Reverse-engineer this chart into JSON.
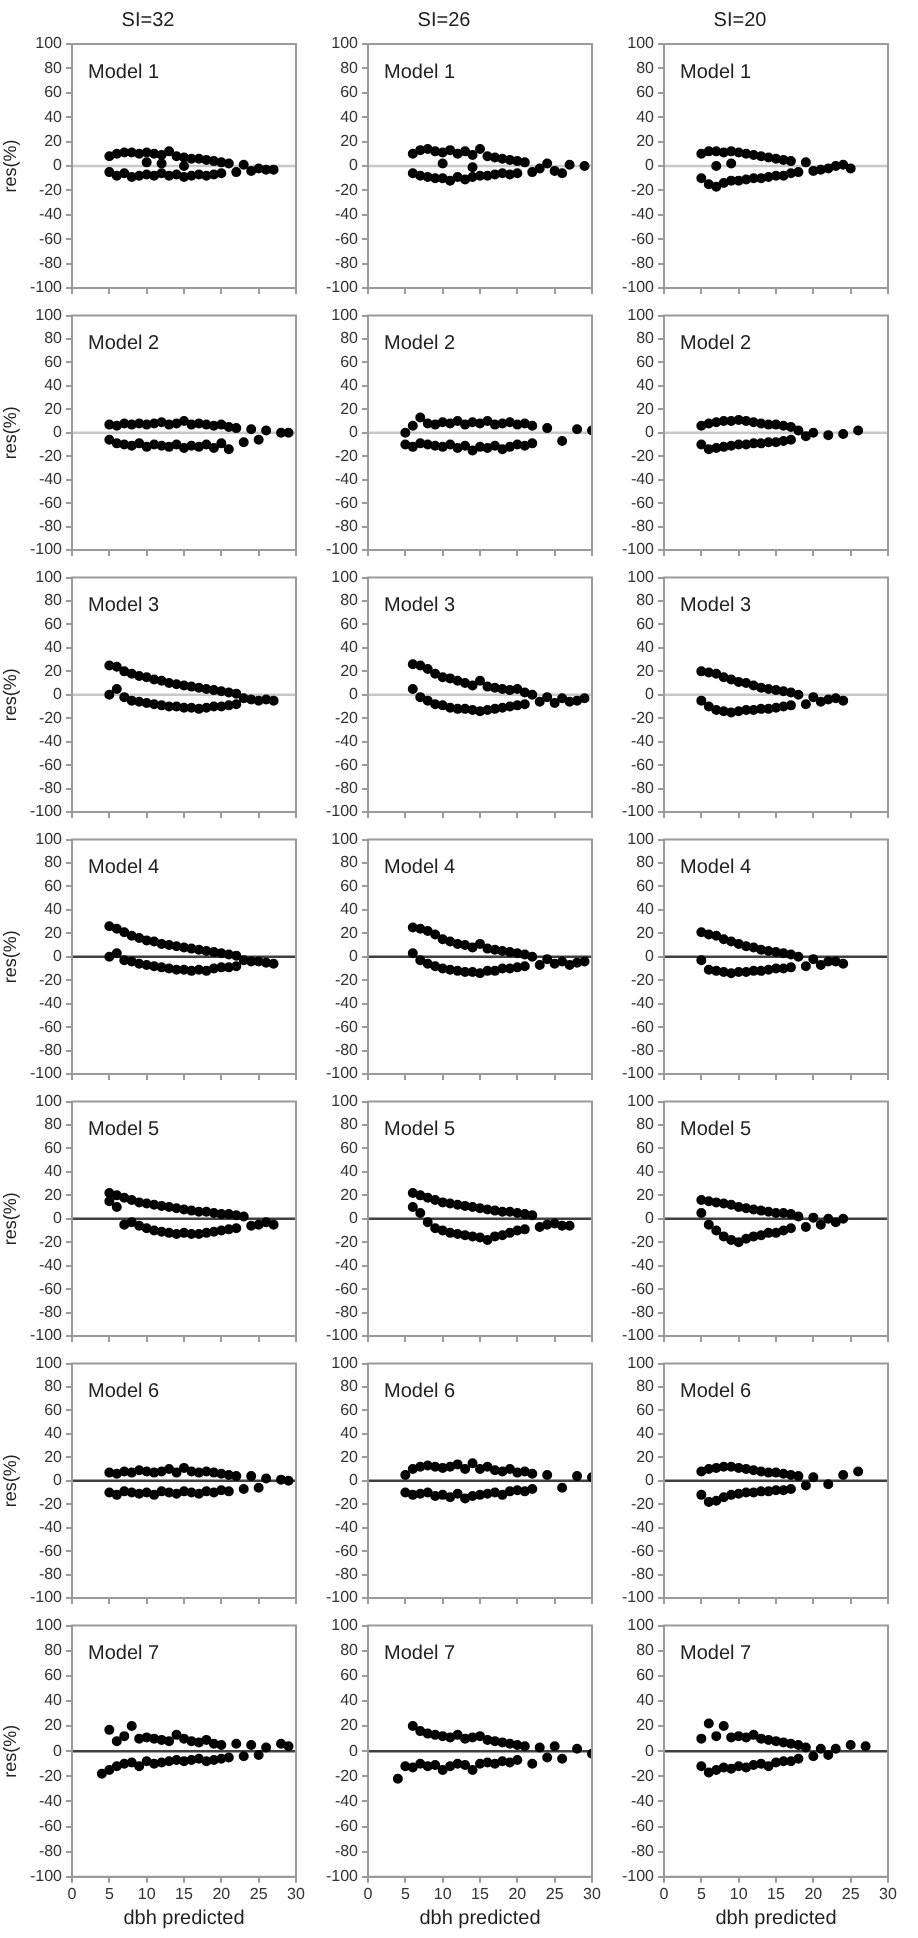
{
  "chart_data": [
    {
      "type": "scatter",
      "title": "SI=32",
      "ylabel": "res(%)",
      "annotations": [
        "Model 1"
      ],
      "x": [
        5,
        5,
        6,
        6,
        7,
        7,
        8,
        8,
        9,
        9,
        10,
        10,
        11,
        11,
        12,
        12,
        13,
        13,
        14,
        14,
        15,
        15,
        16,
        16,
        17,
        17,
        18,
        18,
        19,
        19,
        20,
        20,
        21,
        22,
        23,
        24,
        25,
        26,
        27,
        12,
        15,
        10
      ],
      "values": [
        8,
        -5,
        10,
        -8,
        11,
        -6,
        11,
        -9,
        10,
        -8,
        11,
        -7,
        10,
        -8,
        9,
        -6,
        12,
        -8,
        8,
        -7,
        7,
        -9,
        6,
        -8,
        6,
        -7,
        5,
        -8,
        4,
        -7,
        3,
        -6,
        2,
        -5,
        1,
        -4,
        -2,
        -3,
        -3,
        2,
        0,
        3
      ],
      "color": "#000000",
      "marker": "circle",
      "xlim": [
        0,
        30
      ],
      "xticks": [
        0,
        5,
        10,
        15,
        20,
        25,
        30
      ],
      "ylim": [
        -100,
        100
      ],
      "yticks": [
        -100,
        -80,
        -60,
        -40,
        -20,
        0,
        20,
        40,
        60,
        80,
        100
      ],
      "tick_labels": "y",
      "ref_lines": [
        {
          "axis": "y",
          "value": 0,
          "color": "#c8c8c8"
        }
      ]
    },
    {
      "type": "scatter",
      "title": "SI=26",
      "annotations": [
        "Model 1"
      ],
      "x": [
        6,
        6,
        7,
        7,
        8,
        8,
        9,
        9,
        10,
        10,
        11,
        11,
        12,
        12,
        13,
        13,
        14,
        14,
        15,
        15,
        16,
        16,
        17,
        17,
        18,
        18,
        19,
        19,
        20,
        20,
        21,
        22,
        23,
        24,
        25,
        26,
        27,
        29,
        10,
        14
      ],
      "values": [
        10,
        -6,
        13,
        -8,
        14,
        -9,
        12,
        -10,
        11,
        -10,
        13,
        -12,
        10,
        -9,
        12,
        -11,
        9,
        -9,
        14,
        -8,
        8,
        -8,
        7,
        -7,
        6,
        -6,
        5,
        -7,
        4,
        -6,
        3,
        -5,
        -2,
        2,
        -4,
        -6,
        1,
        0,
        2,
        -1
      ],
      "color": "#000000",
      "marker": "circle",
      "xlim": [
        0,
        30
      ],
      "xticks": [
        0,
        5,
        10,
        15,
        20,
        25,
        30
      ],
      "ylim": [
        -100,
        100
      ],
      "yticks": [
        -100,
        -80,
        -60,
        -40,
        -20,
        0,
        20,
        40,
        60,
        80,
        100
      ],
      "tick_labels": "y",
      "ref_lines": [
        {
          "axis": "y",
          "value": 0,
          "color": "#c8c8c8"
        }
      ]
    },
    {
      "type": "scatter",
      "title": "SI=20",
      "annotations": [
        "Model 1"
      ],
      "x": [
        5,
        5,
        6,
        6,
        7,
        7,
        8,
        8,
        9,
        9,
        10,
        10,
        11,
        11,
        12,
        12,
        13,
        13,
        14,
        14,
        15,
        15,
        16,
        16,
        17,
        17,
        18,
        19,
        20,
        21,
        22,
        23,
        24,
        25,
        7,
        9
      ],
      "values": [
        10,
        -10,
        12,
        -15,
        12,
        -17,
        11,
        -14,
        12,
        -12,
        11,
        -12,
        10,
        -11,
        9,
        -10,
        8,
        -10,
        7,
        -9,
        6,
        -8,
        5,
        -8,
        4,
        -6,
        -5,
        3,
        -4,
        -3,
        -2,
        0,
        1,
        -2,
        0,
        2
      ],
      "color": "#000000",
      "marker": "circle",
      "xlim": [
        0,
        30
      ],
      "xticks": [
        0,
        5,
        10,
        15,
        20,
        25,
        30
      ],
      "ylim": [
        -100,
        100
      ],
      "yticks": [
        -100,
        -80,
        -60,
        -40,
        -20,
        0,
        20,
        40,
        60,
        80,
        100
      ],
      "tick_labels": "y",
      "ref_lines": [
        {
          "axis": "y",
          "value": 0,
          "color": "#c8c8c8"
        }
      ]
    },
    {
      "type": "scatter",
      "ylabel": "res(%)",
      "annotations": [
        "Model 2"
      ],
      "x": [
        5,
        5,
        6,
        6,
        7,
        7,
        8,
        8,
        9,
        9,
        10,
        10,
        11,
        11,
        12,
        12,
        13,
        13,
        14,
        14,
        15,
        15,
        16,
        16,
        17,
        17,
        18,
        18,
        19,
        19,
        20,
        20,
        21,
        21,
        22,
        23,
        24,
        25,
        26,
        28,
        29
      ],
      "values": [
        7,
        -6,
        6,
        -9,
        8,
        -10,
        7,
        -11,
        8,
        -9,
        7,
        -12,
        8,
        -10,
        9,
        -11,
        7,
        -12,
        8,
        -10,
        10,
        -13,
        7,
        -11,
        8,
        -12,
        7,
        -10,
        6,
        -13,
        7,
        -9,
        5,
        -14,
        4,
        -8,
        3,
        -6,
        2,
        0,
        0
      ],
      "color": "#000000",
      "marker": "circle",
      "xlim": [
        0,
        30
      ],
      "xticks": [
        0,
        5,
        10,
        15,
        20,
        25,
        30
      ],
      "ylim": [
        -100,
        100
      ],
      "yticks": [
        -100,
        -80,
        -60,
        -40,
        -20,
        0,
        20,
        40,
        60,
        80,
        100
      ],
      "tick_labels": "y",
      "ref_lines": [
        {
          "axis": "y",
          "value": 0,
          "color": "#c8c8c8"
        }
      ]
    },
    {
      "type": "scatter",
      "annotations": [
        "Model 2"
      ],
      "x": [
        5,
        5,
        6,
        6,
        7,
        7,
        8,
        8,
        9,
        9,
        10,
        10,
        11,
        11,
        12,
        12,
        13,
        13,
        14,
        14,
        15,
        15,
        16,
        16,
        17,
        17,
        18,
        18,
        19,
        19,
        20,
        20,
        21,
        21,
        22,
        22,
        24,
        26,
        28,
        30
      ],
      "values": [
        0,
        -10,
        6,
        -12,
        13,
        -9,
        8,
        -10,
        7,
        -11,
        9,
        -12,
        8,
        -10,
        10,
        -13,
        7,
        -11,
        9,
        -15,
        8,
        -12,
        10,
        -13,
        7,
        -11,
        8,
        -14,
        9,
        -12,
        7,
        -10,
        8,
        -11,
        6,
        -9,
        4,
        -7,
        3,
        2
      ],
      "color": "#000000",
      "marker": "circle",
      "xlim": [
        0,
        30
      ],
      "xticks": [
        0,
        5,
        10,
        15,
        20,
        25,
        30
      ],
      "ylim": [
        -100,
        100
      ],
      "yticks": [
        -100,
        -80,
        -60,
        -40,
        -20,
        0,
        20,
        40,
        60,
        80,
        100
      ],
      "tick_labels": "y",
      "ref_lines": [
        {
          "axis": "y",
          "value": 0,
          "color": "#c8c8c8"
        }
      ]
    },
    {
      "type": "scatter",
      "annotations": [
        "Model 2"
      ],
      "x": [
        5,
        5,
        6,
        6,
        7,
        7,
        8,
        8,
        9,
        9,
        10,
        10,
        11,
        11,
        12,
        12,
        13,
        13,
        14,
        14,
        15,
        15,
        16,
        16,
        17,
        17,
        18,
        19,
        20,
        22,
        24,
        26
      ],
      "values": [
        6,
        -10,
        8,
        -14,
        9,
        -13,
        10,
        -12,
        10,
        -11,
        11,
        -10,
        10,
        -10,
        9,
        -9,
        8,
        -9,
        7,
        -8,
        7,
        -8,
        6,
        -7,
        5,
        -6,
        2,
        -3,
        0,
        -2,
        -1,
        2
      ],
      "color": "#000000",
      "marker": "circle",
      "xlim": [
        0,
        30
      ],
      "xticks": [
        0,
        5,
        10,
        15,
        20,
        25,
        30
      ],
      "ylim": [
        -100,
        100
      ],
      "yticks": [
        -100,
        -80,
        -60,
        -40,
        -20,
        0,
        20,
        40,
        60,
        80,
        100
      ],
      "tick_labels": "y",
      "ref_lines": [
        {
          "axis": "y",
          "value": 0,
          "color": "#c8c8c8"
        }
      ]
    },
    {
      "type": "scatter",
      "ylabel": "res(%)",
      "annotations": [
        "Model 3"
      ],
      "x": [
        5,
        5,
        6,
        6,
        7,
        7,
        8,
        8,
        9,
        9,
        10,
        10,
        11,
        11,
        12,
        12,
        13,
        13,
        14,
        14,
        15,
        15,
        16,
        16,
        17,
        17,
        18,
        18,
        19,
        19,
        20,
        20,
        21,
        21,
        22,
        22,
        23,
        24,
        25,
        26,
        27
      ],
      "values": [
        25,
        0,
        24,
        5,
        20,
        -2,
        18,
        -5,
        16,
        -6,
        15,
        -7,
        13,
        -8,
        12,
        -9,
        10,
        -10,
        9,
        -10,
        8,
        -11,
        7,
        -11,
        6,
        -12,
        5,
        -11,
        4,
        -10,
        3,
        -10,
        2,
        -9,
        1,
        -8,
        -3,
        -4,
        -5,
        -4,
        -5
      ],
      "color": "#000000",
      "marker": "circle",
      "xlim": [
        0,
        30
      ],
      "xticks": [
        0,
        5,
        10,
        15,
        20,
        25,
        30
      ],
      "ylim": [
        -100,
        100
      ],
      "yticks": [
        -100,
        -80,
        -60,
        -40,
        -20,
        0,
        20,
        40,
        60,
        80,
        100
      ],
      "tick_labels": "y",
      "ref_lines": [
        {
          "axis": "y",
          "value": 0,
          "color": "#c8c8c8"
        }
      ]
    },
    {
      "type": "scatter",
      "annotations": [
        "Model 3"
      ],
      "x": [
        6,
        6,
        7,
        7,
        8,
        8,
        9,
        9,
        10,
        10,
        11,
        11,
        12,
        12,
        13,
        13,
        14,
        14,
        15,
        15,
        16,
        16,
        17,
        17,
        18,
        18,
        19,
        19,
        20,
        20,
        21,
        21,
        22,
        23,
        24,
        25,
        26,
        27,
        28,
        29
      ],
      "values": [
        26,
        5,
        25,
        -2,
        22,
        -5,
        18,
        -8,
        15,
        -9,
        14,
        -11,
        12,
        -12,
        10,
        -12,
        8,
        -13,
        12,
        -14,
        7,
        -13,
        6,
        -12,
        5,
        -11,
        4,
        -10,
        5,
        -9,
        2,
        -8,
        0,
        -6,
        -2,
        -7,
        -3,
        -6,
        -5,
        -3
      ],
      "color": "#000000",
      "marker": "circle",
      "xlim": [
        0,
        30
      ],
      "xticks": [
        0,
        5,
        10,
        15,
        20,
        25,
        30
      ],
      "ylim": [
        -100,
        100
      ],
      "yticks": [
        -100,
        -80,
        -60,
        -40,
        -20,
        0,
        20,
        40,
        60,
        80,
        100
      ],
      "tick_labels": "y",
      "ref_lines": [
        {
          "axis": "y",
          "value": 0,
          "color": "#c8c8c8"
        }
      ]
    },
    {
      "type": "scatter",
      "annotations": [
        "Model 3"
      ],
      "x": [
        5,
        5,
        6,
        6,
        7,
        7,
        8,
        8,
        9,
        9,
        10,
        10,
        11,
        11,
        12,
        12,
        13,
        13,
        14,
        14,
        15,
        15,
        16,
        16,
        17,
        17,
        18,
        19,
        20,
        21,
        22,
        23,
        24
      ],
      "values": [
        20,
        -5,
        19,
        -10,
        18,
        -13,
        15,
        -14,
        13,
        -15,
        11,
        -14,
        10,
        -13,
        8,
        -13,
        6,
        -12,
        5,
        -12,
        4,
        -11,
        3,
        -10,
        2,
        -9,
        0,
        -8,
        -2,
        -6,
        -4,
        -3,
        -5
      ],
      "color": "#000000",
      "marker": "circle",
      "xlim": [
        0,
        30
      ],
      "xticks": [
        0,
        5,
        10,
        15,
        20,
        25,
        30
      ],
      "ylim": [
        -100,
        100
      ],
      "yticks": [
        -100,
        -80,
        -60,
        -40,
        -20,
        0,
        20,
        40,
        60,
        80,
        100
      ],
      "tick_labels": "y",
      "ref_lines": [
        {
          "axis": "y",
          "value": 0,
          "color": "#c8c8c8"
        }
      ]
    },
    {
      "type": "scatter",
      "ylabel": "res(%)",
      "annotations": [
        "Model 4"
      ],
      "x": [
        5,
        5,
        6,
        6,
        7,
        7,
        8,
        8,
        9,
        9,
        10,
        10,
        11,
        11,
        12,
        12,
        13,
        13,
        14,
        14,
        15,
        15,
        16,
        16,
        17,
        17,
        18,
        18,
        19,
        19,
        20,
        20,
        21,
        21,
        22,
        22,
        23,
        24,
        25,
        26,
        27
      ],
      "values": [
        26,
        0,
        24,
        3,
        21,
        -3,
        18,
        -4,
        16,
        -6,
        14,
        -7,
        13,
        -8,
        11,
        -9,
        10,
        -10,
        9,
        -11,
        8,
        -11,
        7,
        -12,
        6,
        -11,
        5,
        -12,
        4,
        -10,
        3,
        -9,
        2,
        -9,
        1,
        -8,
        -3,
        -4,
        -4,
        -5,
        -6
      ],
      "color": "#000000",
      "marker": "circle",
      "xlim": [
        0,
        30
      ],
      "xticks": [
        0,
        5,
        10,
        15,
        20,
        25,
        30
      ],
      "ylim": [
        -100,
        100
      ],
      "yticks": [
        -100,
        -80,
        -60,
        -40,
        -20,
        0,
        20,
        40,
        60,
        80,
        100
      ],
      "tick_labels": "y",
      "ref_lines": [
        {
          "axis": "y",
          "value": 0,
          "color": "#404040"
        }
      ]
    },
    {
      "type": "scatter",
      "annotations": [
        "Model 4"
      ],
      "x": [
        6,
        6,
        7,
        7,
        8,
        8,
        9,
        9,
        10,
        10,
        11,
        11,
        12,
        12,
        13,
        13,
        14,
        14,
        15,
        15,
        16,
        16,
        17,
        17,
        18,
        18,
        19,
        19,
        20,
        20,
        21,
        21,
        22,
        23,
        24,
        25,
        26,
        27,
        28,
        29
      ],
      "values": [
        25,
        3,
        24,
        -3,
        22,
        -6,
        19,
        -8,
        15,
        -10,
        13,
        -11,
        11,
        -12,
        10,
        -13,
        8,
        -13,
        11,
        -14,
        7,
        -12,
        6,
        -12,
        5,
        -10,
        4,
        -10,
        3,
        -9,
        2,
        -8,
        0,
        -7,
        -2,
        -6,
        -4,
        -7,
        -5,
        -4
      ],
      "color": "#000000",
      "marker": "circle",
      "xlim": [
        0,
        30
      ],
      "xticks": [
        0,
        5,
        10,
        15,
        20,
        25,
        30
      ],
      "ylim": [
        -100,
        100
      ],
      "yticks": [
        -100,
        -80,
        -60,
        -40,
        -20,
        0,
        20,
        40,
        60,
        80,
        100
      ],
      "tick_labels": "y",
      "ref_lines": [
        {
          "axis": "y",
          "value": 0,
          "color": "#404040"
        }
      ]
    },
    {
      "type": "scatter",
      "annotations": [
        "Model 4"
      ],
      "x": [
        5,
        5,
        6,
        6,
        7,
        7,
        8,
        8,
        9,
        9,
        10,
        10,
        11,
        11,
        12,
        12,
        13,
        13,
        14,
        14,
        15,
        15,
        16,
        16,
        17,
        17,
        18,
        19,
        20,
        21,
        22,
        23,
        24
      ],
      "values": [
        21,
        -3,
        19,
        -11,
        18,
        -12,
        15,
        -13,
        13,
        -14,
        11,
        -13,
        9,
        -13,
        8,
        -12,
        6,
        -12,
        5,
        -11,
        4,
        -10,
        3,
        -10,
        2,
        -9,
        0,
        -8,
        -2,
        -7,
        -4,
        -4,
        -6
      ],
      "color": "#000000",
      "marker": "circle",
      "xlim": [
        0,
        30
      ],
      "xticks": [
        0,
        5,
        10,
        15,
        20,
        25,
        30
      ],
      "ylim": [
        -100,
        100
      ],
      "yticks": [
        -100,
        -80,
        -60,
        -40,
        -20,
        0,
        20,
        40,
        60,
        80,
        100
      ],
      "tick_labels": "y",
      "ref_lines": [
        {
          "axis": "y",
          "value": 0,
          "color": "#404040"
        }
      ]
    },
    {
      "type": "scatter",
      "ylabel": "res(%)",
      "annotations": [
        "Model 5"
      ],
      "x": [
        5,
        5,
        6,
        6,
        7,
        7,
        8,
        8,
        9,
        9,
        10,
        10,
        11,
        11,
        12,
        12,
        13,
        13,
        14,
        14,
        15,
        15,
        16,
        16,
        17,
        17,
        18,
        18,
        19,
        19,
        20,
        20,
        21,
        21,
        22,
        22,
        23,
        24,
        25,
        26,
        27
      ],
      "values": [
        22,
        15,
        20,
        10,
        18,
        -5,
        16,
        -3,
        14,
        -6,
        13,
        -8,
        12,
        -10,
        11,
        -11,
        10,
        -12,
        9,
        -13,
        8,
        -12,
        7,
        -13,
        6,
        -13,
        6,
        -12,
        5,
        -11,
        4,
        -10,
        4,
        -9,
        3,
        -8,
        2,
        -6,
        -5,
        -3,
        -5
      ],
      "color": "#000000",
      "marker": "circle",
      "xlim": [
        0,
        30
      ],
      "xticks": [
        0,
        5,
        10,
        15,
        20,
        25,
        30
      ],
      "ylim": [
        -100,
        100
      ],
      "yticks": [
        -100,
        -80,
        -60,
        -40,
        -20,
        0,
        20,
        40,
        60,
        80,
        100
      ],
      "tick_labels": "y",
      "ref_lines": [
        {
          "axis": "y",
          "value": 0,
          "color": "#404040"
        }
      ]
    },
    {
      "type": "scatter",
      "annotations": [
        "Model 5"
      ],
      "x": [
        6,
        6,
        7,
        7,
        8,
        8,
        9,
        9,
        10,
        10,
        11,
        11,
        12,
        12,
        13,
        13,
        14,
        14,
        15,
        15,
        16,
        16,
        17,
        17,
        18,
        18,
        19,
        19,
        20,
        20,
        21,
        21,
        22,
        23,
        24,
        25,
        26,
        27
      ],
      "values": [
        22,
        10,
        20,
        5,
        18,
        -3,
        16,
        -8,
        14,
        -10,
        13,
        -12,
        12,
        -13,
        11,
        -14,
        10,
        -15,
        9,
        -16,
        8,
        -18,
        7,
        -15,
        6,
        -14,
        6,
        -12,
        5,
        -10,
        4,
        -9,
        3,
        -7,
        -5,
        -4,
        -6,
        -6
      ],
      "color": "#000000",
      "marker": "circle",
      "xlim": [
        0,
        30
      ],
      "xticks": [
        0,
        5,
        10,
        15,
        20,
        25,
        30
      ],
      "ylim": [
        -100,
        100
      ],
      "yticks": [
        -100,
        -80,
        -60,
        -40,
        -20,
        0,
        20,
        40,
        60,
        80,
        100
      ],
      "tick_labels": "y",
      "ref_lines": [
        {
          "axis": "y",
          "value": 0,
          "color": "#404040"
        }
      ]
    },
    {
      "type": "scatter",
      "annotations": [
        "Model 5"
      ],
      "x": [
        5,
        5,
        6,
        6,
        7,
        7,
        8,
        8,
        9,
        9,
        10,
        10,
        11,
        11,
        12,
        12,
        13,
        13,
        14,
        14,
        15,
        15,
        16,
        16,
        17,
        17,
        18,
        19,
        20,
        21,
        22,
        23,
        24
      ],
      "values": [
        16,
        5,
        15,
        -5,
        14,
        -10,
        13,
        -15,
        12,
        -18,
        10,
        -20,
        9,
        -17,
        8,
        -15,
        7,
        -14,
        6,
        -12,
        5,
        -12,
        5,
        -10,
        4,
        -8,
        2,
        -7,
        1,
        -5,
        0,
        -3,
        0
      ],
      "color": "#000000",
      "marker": "circle",
      "xlim": [
        0,
        30
      ],
      "xticks": [
        0,
        5,
        10,
        15,
        20,
        25,
        30
      ],
      "ylim": [
        -100,
        100
      ],
      "yticks": [
        -100,
        -80,
        -60,
        -40,
        -20,
        0,
        20,
        40,
        60,
        80,
        100
      ],
      "tick_labels": "y",
      "ref_lines": [
        {
          "axis": "y",
          "value": 0,
          "color": "#404040"
        }
      ]
    },
    {
      "type": "scatter",
      "ylabel": "res(%)",
      "annotations": [
        "Model 6"
      ],
      "x": [
        5,
        5,
        6,
        6,
        7,
        7,
        8,
        8,
        9,
        9,
        10,
        10,
        11,
        11,
        12,
        12,
        13,
        13,
        14,
        14,
        15,
        15,
        16,
        16,
        17,
        17,
        18,
        18,
        19,
        19,
        20,
        20,
        21,
        21,
        22,
        23,
        24,
        25,
        26,
        28,
        29
      ],
      "values": [
        7,
        -10,
        6,
        -12,
        8,
        -9,
        7,
        -10,
        9,
        -11,
        8,
        -10,
        7,
        -12,
        8,
        -9,
        10,
        -10,
        7,
        -11,
        11,
        -9,
        8,
        -10,
        7,
        -11,
        8,
        -9,
        7,
        -10,
        6,
        -8,
        5,
        -9,
        4,
        -7,
        4,
        -6,
        2,
        1,
        0
      ],
      "color": "#000000",
      "marker": "circle",
      "xlim": [
        0,
        30
      ],
      "xticks": [
        0,
        5,
        10,
        15,
        20,
        25,
        30
      ],
      "ylim": [
        -100,
        100
      ],
      "yticks": [
        -100,
        -80,
        -60,
        -40,
        -20,
        0,
        20,
        40,
        60,
        80,
        100
      ],
      "tick_labels": "y",
      "ref_lines": [
        {
          "axis": "y",
          "value": 0,
          "color": "#404040"
        }
      ]
    },
    {
      "type": "scatter",
      "annotations": [
        "Model 6"
      ],
      "x": [
        5,
        5,
        6,
        6,
        7,
        7,
        8,
        8,
        9,
        9,
        10,
        10,
        11,
        11,
        12,
        12,
        13,
        13,
        14,
        14,
        15,
        15,
        16,
        16,
        17,
        17,
        18,
        18,
        19,
        19,
        20,
        20,
        21,
        21,
        22,
        22,
        24,
        26,
        28,
        30
      ],
      "values": [
        5,
        -10,
        10,
        -12,
        12,
        -11,
        13,
        -10,
        12,
        -13,
        11,
        -12,
        12,
        -14,
        14,
        -11,
        10,
        -15,
        15,
        -13,
        10,
        -12,
        12,
        -11,
        9,
        -10,
        8,
        -12,
        10,
        -9,
        7,
        -8,
        8,
        -9,
        6,
        -7,
        5,
        -6,
        4,
        3
      ],
      "color": "#000000",
      "marker": "circle",
      "xlim": [
        0,
        30
      ],
      "xticks": [
        0,
        5,
        10,
        15,
        20,
        25,
        30
      ],
      "ylim": [
        -100,
        100
      ],
      "yticks": [
        -100,
        -80,
        -60,
        -40,
        -20,
        0,
        20,
        40,
        60,
        80,
        100
      ],
      "tick_labels": "y",
      "ref_lines": [
        {
          "axis": "y",
          "value": 0,
          "color": "#404040"
        }
      ]
    },
    {
      "type": "scatter",
      "annotations": [
        "Model 6"
      ],
      "x": [
        5,
        5,
        6,
        6,
        7,
        7,
        8,
        8,
        9,
        9,
        10,
        10,
        11,
        11,
        12,
        12,
        13,
        13,
        14,
        14,
        15,
        15,
        16,
        16,
        17,
        17,
        18,
        19,
        20,
        22,
        24,
        26
      ],
      "values": [
        8,
        -12,
        10,
        -18,
        11,
        -17,
        12,
        -14,
        12,
        -12,
        11,
        -11,
        10,
        -10,
        9,
        -10,
        8,
        -9,
        7,
        -9,
        7,
        -8,
        6,
        -8,
        5,
        -7,
        4,
        -4,
        3,
        -3,
        5,
        8
      ],
      "color": "#000000",
      "marker": "circle",
      "xlim": [
        0,
        30
      ],
      "xticks": [
        0,
        5,
        10,
        15,
        20,
        25,
        30
      ],
      "ylim": [
        -100,
        100
      ],
      "yticks": [
        -100,
        -80,
        -60,
        -40,
        -20,
        0,
        20,
        40,
        60,
        80,
        100
      ],
      "tick_labels": "y",
      "ref_lines": [
        {
          "axis": "y",
          "value": 0,
          "color": "#404040"
        }
      ]
    },
    {
      "type": "scatter",
      "xlabel": "dbh predicted",
      "ylabel": "res(%)",
      "annotations": [
        "Model 7"
      ],
      "x": [
        4,
        5,
        5,
        6,
        6,
        7,
        7,
        8,
        8,
        9,
        9,
        10,
        10,
        11,
        11,
        12,
        12,
        13,
        13,
        14,
        14,
        15,
        15,
        16,
        16,
        17,
        17,
        18,
        18,
        19,
        19,
        20,
        20,
        21,
        22,
        23,
        24,
        25,
        26,
        28,
        29
      ],
      "values": [
        -18,
        -15,
        17,
        -12,
        8,
        -10,
        12,
        -9,
        20,
        -12,
        10,
        -8,
        11,
        -10,
        10,
        -9,
        9,
        -8,
        8,
        -7,
        13,
        -8,
        10,
        -7,
        8,
        -6,
        7,
        -8,
        9,
        -7,
        6,
        -6,
        5,
        -5,
        6,
        -4,
        5,
        -3,
        3,
        6,
        4
      ],
      "color": "#000000",
      "marker": "circle",
      "xlim": [
        0,
        30
      ],
      "xticks": [
        0,
        5,
        10,
        15,
        20,
        25,
        30
      ],
      "ylim": [
        -100,
        100
      ],
      "yticks": [
        -100,
        -80,
        -60,
        -40,
        -20,
        0,
        20,
        40,
        60,
        80,
        100
      ],
      "ref_lines": [
        {
          "axis": "y",
          "value": 0,
          "color": "#404040"
        }
      ]
    },
    {
      "type": "scatter",
      "xlabel": "dbh predicted",
      "annotations": [
        "Model 7"
      ],
      "x": [
        4,
        5,
        6,
        6,
        7,
        7,
        8,
        8,
        9,
        9,
        10,
        10,
        11,
        11,
        12,
        12,
        13,
        13,
        14,
        14,
        15,
        15,
        16,
        16,
        17,
        17,
        18,
        18,
        19,
        19,
        20,
        20,
        21,
        22,
        23,
        24,
        25,
        26,
        28,
        30
      ],
      "values": [
        -22,
        -12,
        20,
        -13,
        16,
        -10,
        14,
        -12,
        13,
        -11,
        12,
        -15,
        11,
        -12,
        13,
        -10,
        10,
        -11,
        11,
        -15,
        12,
        -10,
        9,
        -9,
        8,
        -10,
        7,
        -8,
        6,
        -9,
        5,
        -7,
        4,
        -10,
        3,
        -5,
        4,
        -6,
        2,
        -2
      ],
      "color": "#000000",
      "marker": "circle",
      "xlim": [
        0,
        30
      ],
      "xticks": [
        0,
        5,
        10,
        15,
        20,
        25,
        30
      ],
      "ylim": [
        -100,
        100
      ],
      "yticks": [
        -100,
        -80,
        -60,
        -40,
        -20,
        0,
        20,
        40,
        60,
        80,
        100
      ],
      "ref_lines": [
        {
          "axis": "y",
          "value": 0,
          "color": "#404040"
        }
      ]
    },
    {
      "type": "scatter",
      "xlabel": "dbh predicted",
      "annotations": [
        "Model 7"
      ],
      "x": [
        5,
        5,
        6,
        6,
        7,
        7,
        8,
        8,
        9,
        9,
        10,
        10,
        11,
        11,
        12,
        12,
        13,
        13,
        14,
        14,
        15,
        15,
        16,
        16,
        17,
        17,
        18,
        18,
        19,
        20,
        21,
        22,
        23,
        25,
        27
      ],
      "values": [
        10,
        -12,
        22,
        -17,
        12,
        -15,
        20,
        -13,
        11,
        -14,
        12,
        -12,
        11,
        -13,
        13,
        -11,
        10,
        -10,
        9,
        -12,
        8,
        -9,
        7,
        -8,
        6,
        -8,
        5,
        -6,
        3,
        -4,
        2,
        -3,
        2,
        5,
        4
      ],
      "color": "#000000",
      "marker": "circle",
      "xlim": [
        0,
        30
      ],
      "xticks": [
        0,
        5,
        10,
        15,
        20,
        25,
        30
      ],
      "ylim": [
        -100,
        100
      ],
      "yticks": [
        -100,
        -80,
        -60,
        -40,
        -20,
        0,
        20,
        40,
        60,
        80,
        100
      ],
      "ref_lines": [
        {
          "axis": "y",
          "value": 0,
          "color": "#404040"
        }
      ]
    }
  ]
}
